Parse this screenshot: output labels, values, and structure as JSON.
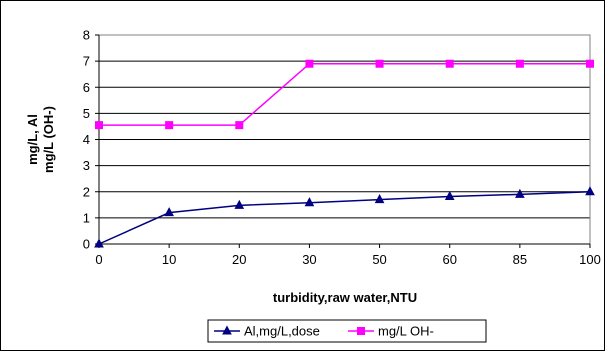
{
  "chart_data": {
    "type": "line",
    "title": "",
    "xlabel": "turbidity,raw water,NTU",
    "ylabel_lines": [
      "mg/L, Al",
      "mg/L (OH-)"
    ],
    "categories": [
      "0",
      "10",
      "20",
      "30",
      "50",
      "60",
      "85",
      "100"
    ],
    "ylim": [
      0,
      8
    ],
    "yticks": [
      "0",
      "1",
      "2",
      "3",
      "4",
      "5",
      "6",
      "7",
      "8"
    ],
    "grid": true,
    "legend_position": "bottom",
    "series": [
      {
        "name": "Al,mg/L,dose",
        "color": "#000080",
        "marker": "triangle",
        "values": [
          0,
          1.2,
          1.48,
          1.58,
          1.7,
          1.82,
          1.9,
          2.0
        ]
      },
      {
        "name": "mg/L OH-",
        "color": "#FF00FF",
        "marker": "square",
        "values": [
          4.55,
          4.55,
          4.55,
          6.9,
          6.9,
          6.9,
          6.9,
          6.9
        ]
      }
    ]
  }
}
